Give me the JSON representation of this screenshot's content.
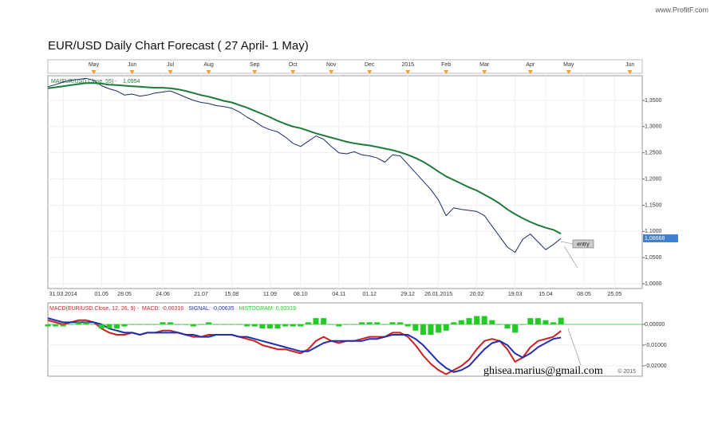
{
  "site": "www.ProfitF.com",
  "chart_data": [
    {
      "type": "line",
      "title": "EUR/USD Daily Chart Forecast ( 27 April- 1 May)",
      "top_categories": [
        null,
        null,
        null,
        null,
        null,
        null,
        "May",
        null,
        null,
        null,
        null,
        "Jun",
        null,
        null,
        null,
        null,
        "Jul",
        null,
        null,
        null,
        null,
        "Aug",
        null,
        null,
        null,
        null,
        null,
        "Sep",
        null,
        null,
        null,
        null,
        "Oct",
        null,
        null,
        null,
        null,
        "Nov",
        null,
        null,
        null,
        null,
        "Dec",
        null,
        null,
        null,
        null,
        "2015",
        null,
        null,
        null,
        null,
        "Feb",
        null,
        null,
        null,
        null,
        "Mar",
        null,
        null,
        null,
        null,
        null,
        "Apr",
        null,
        null,
        null,
        null,
        "May",
        null,
        null,
        null,
        null,
        null,
        null,
        null,
        "Jun",
        null
      ],
      "categories": [
        null,
        null,
        "31.03.2014",
        null,
        null,
        null,
        null,
        "01.05",
        null,
        null,
        "28.05",
        null,
        null,
        null,
        null,
        "24.06",
        null,
        null,
        null,
        null,
        "21.07",
        null,
        null,
        null,
        "15.08",
        null,
        null,
        null,
        null,
        "11.09",
        null,
        null,
        null,
        "08.10",
        null,
        null,
        null,
        null,
        "04.11",
        null,
        null,
        null,
        "01.12",
        null,
        null,
        null,
        null,
        "29.12",
        null,
        null,
        null,
        "26.01.2015",
        null,
        null,
        null,
        null,
        "20.02",
        null,
        null,
        null,
        null,
        "19.03",
        null,
        null,
        null,
        "15.04",
        null,
        null,
        null,
        null,
        "08.05",
        null,
        null,
        null,
        "25.05",
        null,
        null,
        null
      ],
      "series": [
        {
          "color": "#1b2a6b",
          "last_label": "1,08668",
          "values": [
            1.376,
            1.38,
            1.385,
            1.388,
            1.39,
            1.392,
            1.388,
            1.378,
            1.372,
            1.368,
            1.36,
            1.362,
            1.358,
            1.36,
            1.364,
            1.366,
            1.368,
            1.362,
            1.356,
            1.35,
            1.346,
            1.344,
            1.34,
            1.338,
            1.335,
            1.328,
            1.318,
            1.31,
            1.3,
            1.294,
            1.29,
            1.28,
            1.268,
            1.262,
            1.272,
            1.282,
            1.276,
            1.262,
            1.25,
            1.248,
            1.252,
            1.246,
            1.244,
            1.24,
            1.232,
            1.246,
            1.244,
            1.228,
            1.212,
            1.196,
            1.18,
            1.16,
            1.13,
            1.145,
            1.142,
            1.14,
            1.138,
            1.13,
            1.11,
            1.09,
            1.07,
            1.06,
            1.085,
            1.095,
            1.08,
            1.065,
            1.075,
            1.08668,
            null,
            null,
            null,
            null,
            null,
            null,
            null,
            null,
            null,
            null
          ]
        },
        {
          "name": "MA(EUR/USD.Close, 55) -",
          "color": "#1e7a3a",
          "last_label": "1,0954",
          "values": [
            1.373,
            1.375,
            1.377,
            1.379,
            1.381,
            1.383,
            1.383,
            1.382,
            1.38,
            1.379,
            1.378,
            1.377,
            1.376,
            1.375,
            1.374,
            1.374,
            1.373,
            1.371,
            1.368,
            1.364,
            1.36,
            1.357,
            1.353,
            1.349,
            1.346,
            1.341,
            1.336,
            1.33,
            1.324,
            1.318,
            1.311,
            1.305,
            1.3,
            1.297,
            1.292,
            1.287,
            1.283,
            1.279,
            1.275,
            1.271,
            1.268,
            1.266,
            1.264,
            1.261,
            1.258,
            1.255,
            1.251,
            1.246,
            1.24,
            1.233,
            1.224,
            1.214,
            1.205,
            1.198,
            1.191,
            1.184,
            1.178,
            1.17,
            1.162,
            1.153,
            1.142,
            1.133,
            1.125,
            1.118,
            1.112,
            1.107,
            1.103,
            1.0954,
            null,
            null,
            null,
            null,
            null,
            null,
            null,
            null,
            null,
            null
          ]
        }
      ],
      "ylim": [
        0.991,
        1.397
      ],
      "yticks": [
        {
          "value": 1.0,
          "label": "1,0000"
        },
        {
          "value": 1.05,
          "label": "1,0500"
        },
        {
          "value": 1.1,
          "label": "1,1000"
        },
        {
          "value": 1.15,
          "label": "1,1500"
        },
        {
          "value": 1.2,
          "label": "1,2000"
        },
        {
          "value": 1.25,
          "label": "1,2500"
        },
        {
          "value": 1.3,
          "label": "1,3000"
        },
        {
          "value": 1.35,
          "label": "1,3500"
        }
      ],
      "grid": true,
      "annotations": [
        "entry"
      ]
    },
    {
      "type": "line",
      "title": "MACD(EUR/USD.Close, 12, 26, 9) -",
      "series": [
        {
          "name": "MACD:",
          "type": "line",
          "color": "#cc1f1f",
          "last_label": "-0,00316",
          "values": [
            0.002,
            0.001,
            0.0,
            0.001,
            0.002,
            0.002,
            0.001,
            -0.002,
            -0.004,
            -0.005,
            -0.005,
            -0.004,
            -0.005,
            -0.004,
            -0.004,
            -0.003,
            -0.003,
            -0.004,
            -0.005,
            -0.006,
            -0.006,
            -0.005,
            -0.005,
            -0.005,
            -0.005,
            -0.006,
            -0.007,
            -0.008,
            -0.01,
            -0.011,
            -0.012,
            -0.012,
            -0.013,
            -0.014,
            -0.012,
            -0.008,
            -0.006,
            -0.008,
            -0.009,
            -0.008,
            -0.008,
            -0.007,
            -0.006,
            -0.006,
            -0.006,
            -0.004,
            -0.004,
            -0.006,
            -0.01,
            -0.015,
            -0.019,
            -0.022,
            -0.024,
            -0.022,
            -0.02,
            -0.017,
            -0.012,
            -0.008,
            -0.007,
            -0.008,
            -0.012,
            -0.018,
            -0.016,
            -0.011,
            -0.008,
            -0.007,
            -0.006,
            -0.00316,
            null,
            null,
            null,
            null,
            null,
            null,
            null,
            null,
            null,
            null
          ]
        },
        {
          "name": "SIGNAL:",
          "type": "line",
          "color": "#1f2fb0",
          "last_label": "-0,00635",
          "values": [
            0.003,
            0.002,
            0.001,
            0.001,
            0.001,
            0.001,
            0.001,
            0.0,
            -0.002,
            -0.003,
            -0.004,
            -0.004,
            -0.005,
            -0.004,
            -0.004,
            -0.004,
            -0.004,
            -0.004,
            -0.005,
            -0.005,
            -0.006,
            -0.006,
            -0.005,
            -0.005,
            -0.005,
            -0.006,
            -0.006,
            -0.007,
            -0.008,
            -0.009,
            -0.01,
            -0.011,
            -0.012,
            -0.013,
            -0.013,
            -0.011,
            -0.009,
            -0.008,
            -0.008,
            -0.008,
            -0.008,
            -0.008,
            -0.007,
            -0.007,
            -0.006,
            -0.005,
            -0.005,
            -0.005,
            -0.007,
            -0.01,
            -0.014,
            -0.018,
            -0.021,
            -0.023,
            -0.022,
            -0.02,
            -0.016,
            -0.012,
            -0.009,
            -0.008,
            -0.01,
            -0.014,
            -0.016,
            -0.014,
            -0.011,
            -0.009,
            -0.007,
            -0.00635,
            null,
            null,
            null,
            null,
            null,
            null,
            null,
            null,
            null,
            null
          ]
        },
        {
          "name": "HISTOGRAM:",
          "type": "bar",
          "color": "#22cc22",
          "last_label": "0,00319",
          "values": [
            -0.001,
            -0.001,
            -0.001,
            0,
            0.001,
            0.001,
            0,
            -0.002,
            -0.002,
            -0.002,
            -0.001,
            0,
            0,
            0,
            0,
            0.001,
            0.001,
            0,
            0,
            -0.001,
            0,
            0.001,
            0,
            0,
            0,
            0,
            -0.001,
            -0.001,
            -0.002,
            -0.002,
            -0.002,
            -0.001,
            -0.001,
            -0.001,
            0.001,
            0.003,
            0.003,
            0,
            -0.001,
            0,
            0,
            0.001,
            0.001,
            0.001,
            0,
            0.001,
            0.001,
            -0.001,
            -0.003,
            -0.005,
            -0.005,
            -0.004,
            -0.003,
            0.001,
            0.002,
            0.003,
            0.004,
            0.004,
            0.002,
            0,
            -0.002,
            -0.004,
            0,
            0.003,
            0.003,
            0.002,
            0.001,
            0.00319,
            null,
            null,
            null,
            null,
            null,
            null,
            null,
            null,
            null,
            null
          ]
        }
      ],
      "ylim": [
        -0.0242,
        0.0092
      ],
      "yticks": [
        {
          "value": -0.02,
          "label": "-0,02000"
        },
        {
          "value": -0.01,
          "label": "-0,01000"
        },
        {
          "value": 0,
          "label": "0,00000"
        }
      ],
      "grid": true,
      "annotations": [
        "ghisea.marius@gmail.com",
        "© 2015"
      ]
    }
  ]
}
